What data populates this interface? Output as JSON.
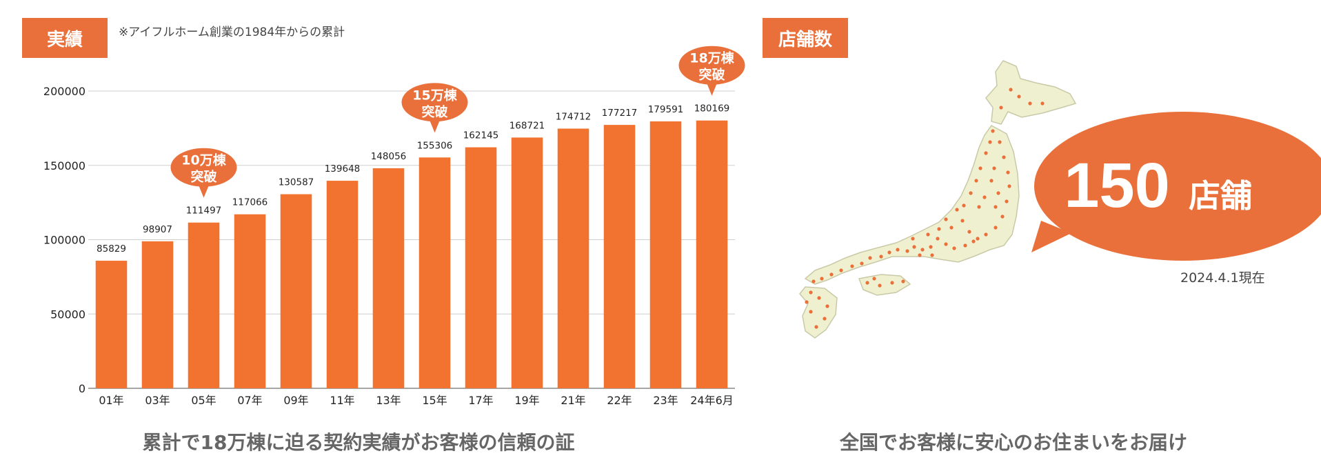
{
  "left_panel": {
    "tag": "実績",
    "note": "※アイフルホーム創業の1984年からの累計",
    "caption": "累計で18万棟に迫る契約実績がお客様の信頼の証"
  },
  "right_panel": {
    "tag": "店舗数",
    "store_number": "150",
    "store_unit": "店舗",
    "date_note": "2024.4.1現在",
    "caption": "全国でお客様に安心のお住まいをお届け"
  },
  "colors": {
    "accent": "#e9703a",
    "bar": "#f2722f",
    "map_land": "#eef0cf",
    "map_dot": "#e9703a"
  },
  "chart_data": {
    "type": "bar",
    "categories": [
      "01年",
      "03年",
      "05年",
      "07年",
      "09年",
      "11年",
      "13年",
      "15年",
      "17年",
      "19年",
      "21年",
      "22年",
      "23年",
      "24年6月"
    ],
    "values": [
      85829,
      98907,
      111497,
      117066,
      130587,
      139648,
      148056,
      155306,
      162145,
      168721,
      174712,
      177217,
      179591,
      180169
    ],
    "ylim": [
      0,
      200000
    ],
    "yticks": [
      0,
      50000,
      100000,
      150000,
      200000
    ],
    "grid": true,
    "annotations": [
      {
        "category": "05年",
        "lines": [
          "10万棟",
          "突破"
        ]
      },
      {
        "category": "15年",
        "lines": [
          "15万棟",
          "突破"
        ]
      },
      {
        "category": "24年6月",
        "lines": [
          "18万棟",
          "突破"
        ]
      }
    ]
  }
}
